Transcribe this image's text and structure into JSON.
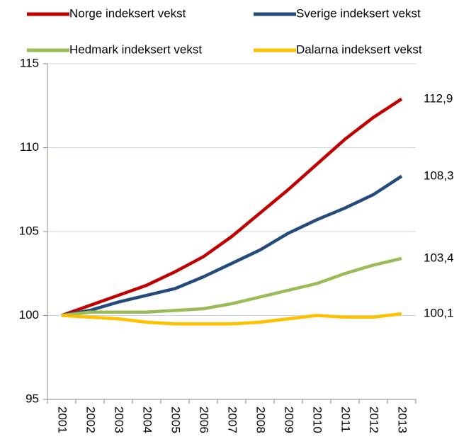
{
  "chart_data": {
    "type": "line",
    "categories": [
      "2001",
      "2002",
      "2003",
      "2004",
      "2005",
      "2006",
      "2007",
      "2008",
      "2009",
      "2010",
      "2011",
      "2012",
      "2013"
    ],
    "series": [
      {
        "name": "Norge indeksert vekst",
        "color": "#c00000",
        "values": [
          100,
          100.6,
          101.2,
          101.8,
          102.6,
          103.5,
          104.7,
          106.1,
          107.5,
          109.0,
          110.5,
          111.8,
          112.9
        ],
        "value_labels": [
          null,
          null,
          null,
          null,
          null,
          null,
          null,
          null,
          null,
          null,
          null,
          null,
          "112,9"
        ]
      },
      {
        "name": "Sverige indeksert vekst",
        "color": "#254a7c",
        "values": [
          100,
          100.3,
          100.8,
          101.2,
          101.6,
          102.3,
          103.1,
          103.9,
          104.9,
          105.7,
          106.4,
          107.2,
          108.3
        ],
        "value_labels": [
          null,
          null,
          null,
          null,
          null,
          null,
          null,
          null,
          null,
          null,
          null,
          null,
          "108,3"
        ]
      },
      {
        "name": "Hedmark indeksert vekst",
        "color": "#9bbb59",
        "values": [
          100,
          100.2,
          100.2,
          100.2,
          100.3,
          100.4,
          100.7,
          101.1,
          101.5,
          101.9,
          102.5,
          103.0,
          103.4
        ],
        "value_labels": [
          null,
          null,
          null,
          null,
          null,
          null,
          null,
          null,
          null,
          null,
          null,
          null,
          "103,4"
        ]
      },
      {
        "name": "Dalarna indeksert vekst",
        "color": "#ffc000",
        "values": [
          100,
          99.9,
          99.8,
          99.6,
          99.5,
          99.5,
          99.5,
          99.6,
          99.8,
          100.0,
          99.9,
          99.9,
          100.1
        ],
        "value_labels": [
          null,
          null,
          null,
          null,
          null,
          null,
          null,
          null,
          null,
          null,
          null,
          null,
          "100,1"
        ]
      }
    ],
    "ylim": [
      95,
      115
    ],
    "yticks": [
      95,
      100,
      105,
      110,
      115
    ],
    "grid": true
  }
}
